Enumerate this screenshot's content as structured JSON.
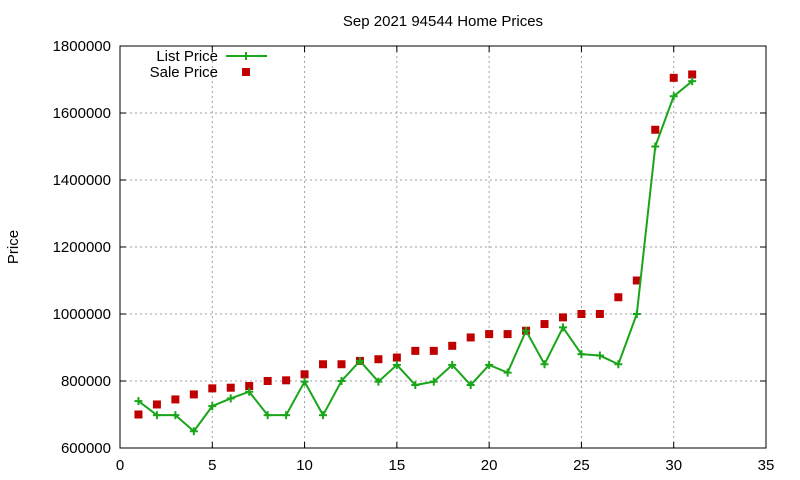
{
  "chart_data": {
    "type": "line",
    "title": "Sep 2021 94544 Home Prices",
    "xlabel": "",
    "ylabel": "Price",
    "xlim": [
      0,
      35
    ],
    "ylim": [
      600000,
      1800000
    ],
    "xticks": [
      "0",
      "5",
      "10",
      "15",
      "20",
      "25",
      "30",
      "35"
    ],
    "yticks": [
      "600000",
      "800000",
      "1000000",
      "1200000",
      "1400000",
      "1600000",
      "1800000"
    ],
    "grid": true,
    "legend_position": "top-left",
    "series": [
      {
        "name": "List Price",
        "style": "line+plus",
        "color": "#1aa51a",
        "x": [
          1,
          2,
          3,
          4,
          5,
          6,
          7,
          8,
          9,
          10,
          11,
          12,
          13,
          14,
          15,
          16,
          17,
          18,
          19,
          20,
          21,
          22,
          23,
          24,
          25,
          26,
          27,
          28,
          29,
          30,
          31
        ],
        "y": [
          740000,
          698000,
          698000,
          650000,
          725000,
          748000,
          768000,
          698000,
          698000,
          798000,
          698000,
          800000,
          860000,
          798000,
          848000,
          788000,
          798000,
          848000,
          788000,
          848000,
          825000,
          950000,
          850000,
          960000,
          880000,
          876000,
          850000,
          1000000,
          1500000,
          1650000,
          1695000
        ]
      },
      {
        "name": "Sale Price",
        "style": "square",
        "color": "#c00000",
        "x": [
          1,
          2,
          3,
          4,
          5,
          6,
          7,
          8,
          9,
          10,
          11,
          12,
          13,
          14,
          15,
          16,
          17,
          18,
          19,
          20,
          21,
          22,
          23,
          24,
          25,
          26,
          27,
          28,
          29,
          30,
          31
        ],
        "y": [
          700000,
          730000,
          745000,
          760000,
          778000,
          780000,
          785000,
          800000,
          802000,
          820000,
          850000,
          850000,
          860000,
          865000,
          870000,
          890000,
          890000,
          905000,
          930000,
          940000,
          940000,
          950000,
          970000,
          990000,
          1000000,
          1000000,
          1050000,
          1100000,
          1550000,
          1705000,
          1715000
        ]
      }
    ]
  }
}
